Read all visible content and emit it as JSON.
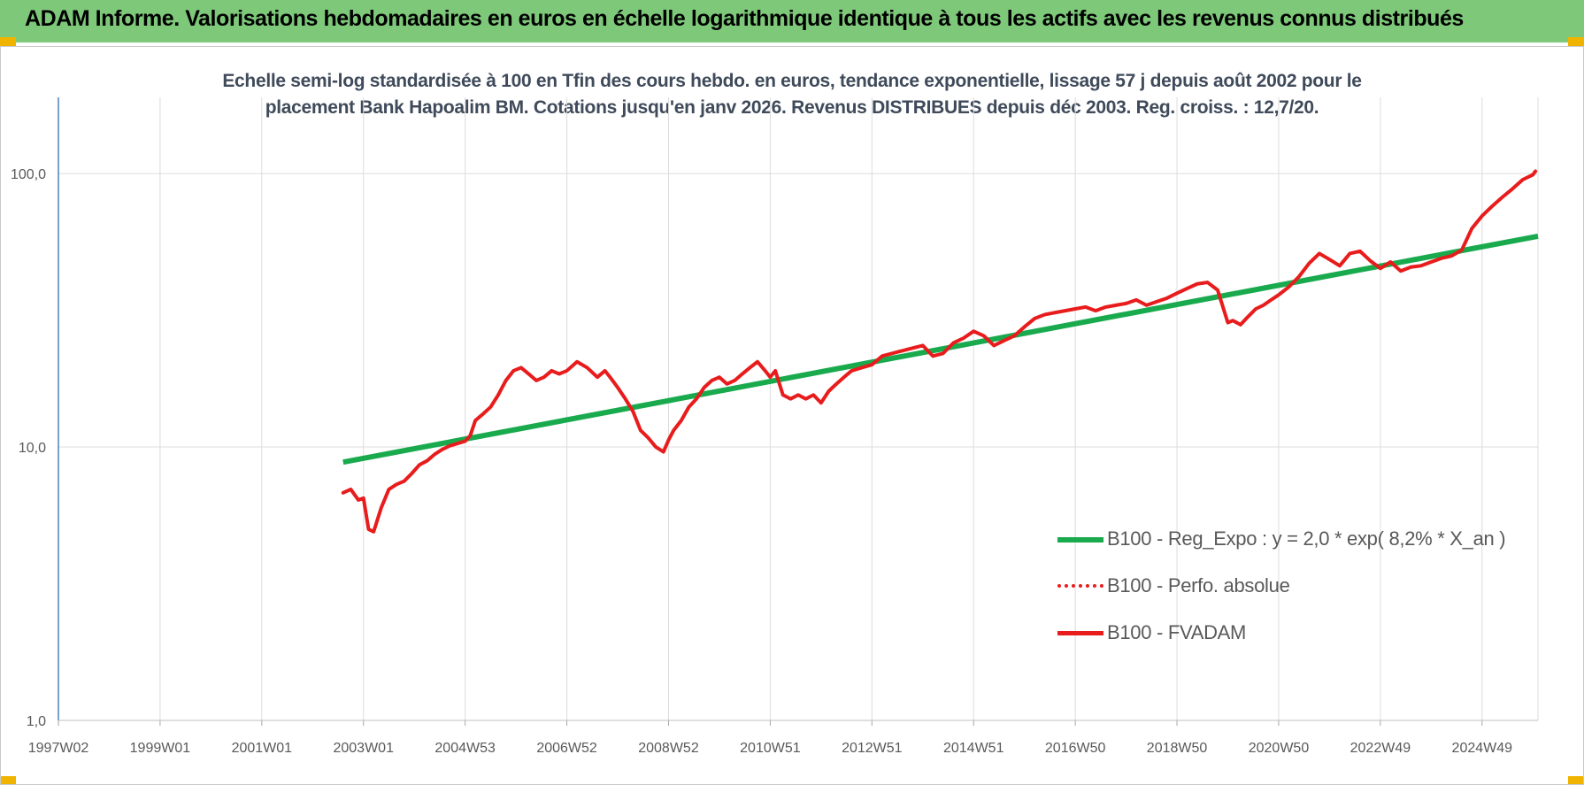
{
  "header": {
    "title": "ADAM Informe. Valorisations hebdomadaires en euros en échelle logarithmique identique à tous les actifs avec les revenus connus distribués"
  },
  "chart_data": {
    "type": "line",
    "title_lines": [
      "Echelle semi-log standardisée à 100 en Tfin des cours hebdo. en euros, tendance exponentielle, lissage 57 j depuis août 2002 pour le",
      "placement Bank Hapoalim BM. Cotations jusqu'en janv 2026. Revenus DISTRIBUES depuis déc 2003. Reg. croiss. : 12,7/20."
    ],
    "y_scale": "log",
    "ylim": [
      1,
      190
    ],
    "y_ticks": [
      1,
      10,
      100
    ],
    "y_tick_labels": [
      "1,0",
      "10,0",
      "100,0"
    ],
    "xlim": [
      1997.0,
      2026.1
    ],
    "x_ticks": [
      1997.0,
      1999.0,
      2001.0,
      2003.0,
      2005.0,
      2007.0,
      2009.0,
      2011.0,
      2013.0,
      2015.0,
      2017.0,
      2019.0,
      2021.0,
      2023.0,
      2025.0
    ],
    "x_tick_labels": [
      "1997W02",
      "1999W01",
      "2001W01",
      "2003W01",
      "2004W53",
      "2006W52",
      "2008W52",
      "2010W51",
      "2012W51",
      "2014W51",
      "2016W50",
      "2018W50",
      "2020W50",
      "2022W49",
      "2024W49"
    ],
    "grid": true,
    "legend_position": "lower-right",
    "colors": {
      "trend": "#1aaa4e",
      "perf": "#e81c1c",
      "fvadam": "#e81c1c",
      "grid": "#dcdcdc",
      "axis": "#4f81bd"
    },
    "series": [
      {
        "name": "B100 - Reg_Expo : y = 2,0 * exp( 8,2% *  X_an )",
        "style": "solid",
        "x": [
          2002.6,
          2026.1
        ],
        "y": [
          8.8,
          59
        ]
      },
      {
        "name": "B100 - Perfo. absolue",
        "style": "dotted",
        "x": [],
        "y": []
      },
      {
        "name": "B100 - FVADAM",
        "style": "solid",
        "x": [
          2002.6,
          2002.75,
          2002.9,
          2003.0,
          2003.1,
          2003.2,
          2003.35,
          2003.5,
          2003.65,
          2003.8,
          2003.95,
          2004.1,
          2004.25,
          2004.4,
          2004.55,
          2004.7,
          2004.85,
          2005.0,
          2005.1,
          2005.2,
          2005.35,
          2005.5,
          2005.65,
          2005.8,
          2005.95,
          2006.1,
          2006.25,
          2006.4,
          2006.55,
          2006.7,
          2006.85,
          2007.0,
          2007.2,
          2007.4,
          2007.6,
          2007.75,
          2007.85,
          2008.0,
          2008.15,
          2008.3,
          2008.45,
          2008.6,
          2008.75,
          2008.9,
          2009.0,
          2009.1,
          2009.25,
          2009.4,
          2009.55,
          2009.7,
          2009.85,
          2010.0,
          2010.15,
          2010.3,
          2010.45,
          2010.6,
          2010.75,
          2010.9,
          2011.0,
          2011.1,
          2011.25,
          2011.4,
          2011.55,
          2011.7,
          2011.85,
          2012.0,
          2012.15,
          2012.3,
          2012.45,
          2012.6,
          2012.8,
          2013.0,
          2013.2,
          2013.4,
          2013.6,
          2013.8,
          2014.0,
          2014.2,
          2014.4,
          2014.6,
          2014.8,
          2015.0,
          2015.2,
          2015.4,
          2015.6,
          2015.8,
          2016.0,
          2016.2,
          2016.4,
          2016.6,
          2016.8,
          2017.0,
          2017.2,
          2017.4,
          2017.6,
          2017.8,
          2018.0,
          2018.2,
          2018.4,
          2018.6,
          2018.8,
          2019.0,
          2019.2,
          2019.4,
          2019.6,
          2019.8,
          2020.0,
          2020.1,
          2020.25,
          2020.4,
          2020.55,
          2020.7,
          2020.85,
          2021.0,
          2021.2,
          2021.4,
          2021.6,
          2021.8,
          2022.0,
          2022.2,
          2022.4,
          2022.6,
          2022.8,
          2023.0,
          2023.2,
          2023.4,
          2023.6,
          2023.8,
          2024.0,
          2024.2,
          2024.4,
          2024.6,
          2024.8,
          2025.0,
          2025.2,
          2025.4,
          2025.6,
          2025.8,
          2026.0,
          2026.05
        ],
        "y": [
          6.8,
          7.0,
          6.4,
          6.5,
          5.0,
          4.9,
          6.0,
          7.0,
          7.3,
          7.5,
          8.0,
          8.6,
          8.9,
          9.4,
          9.8,
          10.1,
          10.3,
          10.5,
          11.0,
          12.5,
          13.2,
          14.0,
          15.5,
          17.5,
          19.0,
          19.5,
          18.5,
          17.5,
          18.0,
          19.0,
          18.5,
          19.0,
          20.5,
          19.5,
          18.0,
          19.0,
          18.0,
          16.5,
          15.0,
          13.5,
          11.5,
          10.8,
          10.0,
          9.6,
          10.6,
          11.5,
          12.5,
          14.0,
          15.0,
          16.5,
          17.5,
          18.0,
          17.0,
          17.5,
          18.5,
          19.5,
          20.5,
          19.0,
          18.0,
          19.0,
          15.5,
          15.0,
          15.5,
          15.0,
          15.5,
          14.5,
          16.0,
          17.0,
          18.0,
          19.0,
          19.5,
          20.0,
          21.5,
          22.0,
          22.5,
          23.0,
          23.5,
          21.5,
          22.0,
          24.0,
          25.0,
          26.5,
          25.5,
          23.5,
          24.5,
          25.5,
          27.5,
          29.5,
          30.5,
          31.0,
          31.5,
          32.0,
          32.5,
          31.5,
          32.5,
          33.0,
          33.5,
          34.5,
          33.0,
          34.0,
          35.0,
          36.5,
          38.0,
          39.5,
          40.0,
          37.5,
          28.5,
          29.0,
          28.0,
          30.0,
          32.0,
          33.0,
          34.5,
          36.0,
          38.5,
          42.0,
          47.0,
          51.0,
          48.5,
          46.0,
          51.0,
          52.0,
          48.0,
          45.0,
          47.5,
          44.0,
          45.5,
          46.0,
          47.5,
          49.0,
          50.0,
          52.5,
          63.0,
          70.0,
          76.0,
          82.0,
          88.0,
          95.0,
          99.0,
          102.0
        ]
      }
    ]
  }
}
